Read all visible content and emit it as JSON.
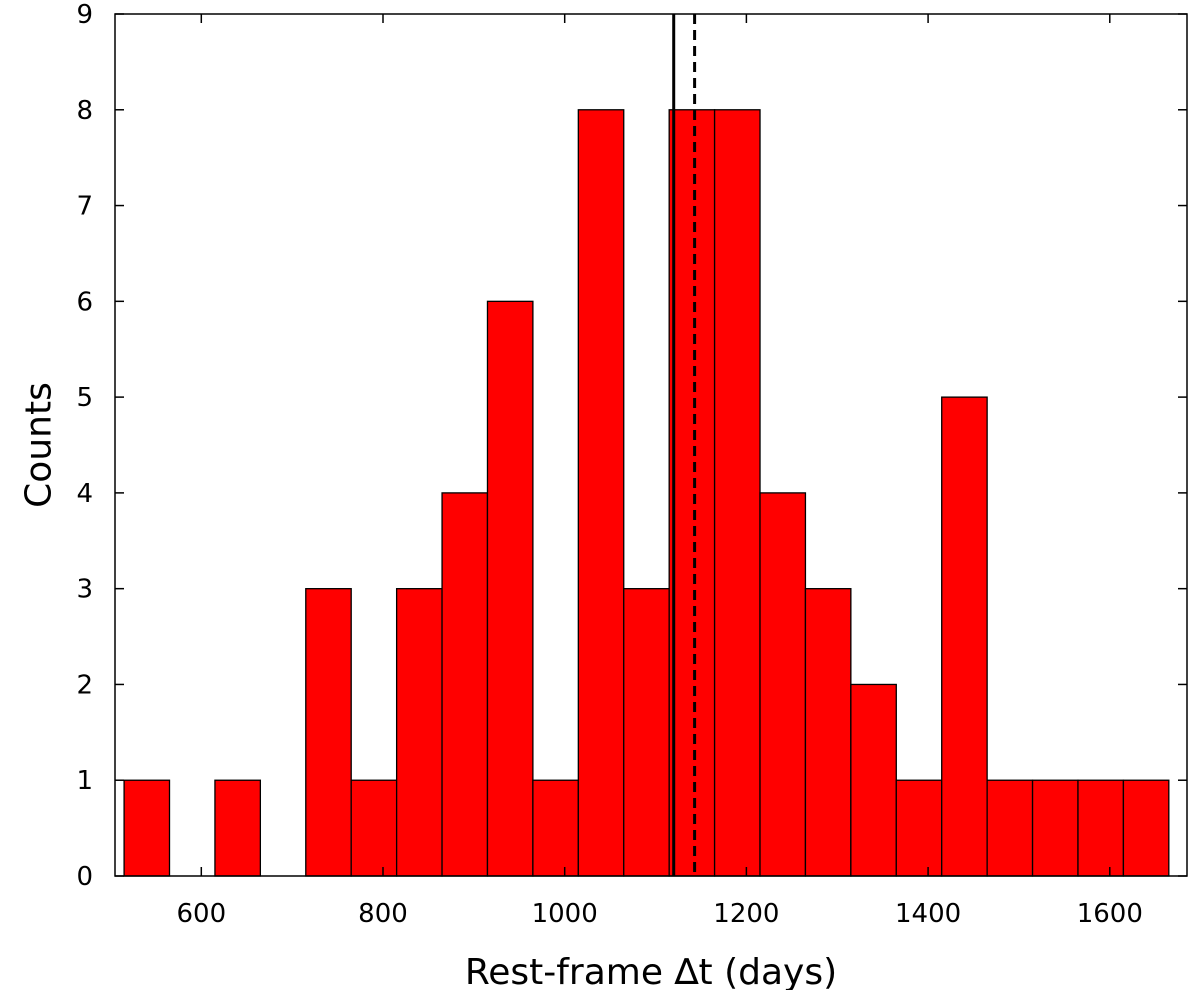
{
  "chart_data": {
    "type": "bar",
    "title": "",
    "xlabel": "Rest-frame ∆t (days)",
    "ylabel": "Counts",
    "xlim": [
      505,
      1685
    ],
    "ylim": [
      0,
      9
    ],
    "bin_width": 50,
    "bin_edges": [
      515,
      565,
      615,
      665,
      715,
      765,
      815,
      865,
      915,
      965,
      1015,
      1065,
      1115,
      1165,
      1215,
      1265,
      1315,
      1365,
      1415,
      1465,
      1515,
      1565,
      1615,
      1665
    ],
    "values": [
      1,
      0,
      1,
      0,
      3,
      1,
      3,
      4,
      6,
      1,
      8,
      3,
      8,
      8,
      4,
      3,
      2,
      1,
      5,
      1,
      1,
      1,
      1
    ],
    "bar_color": "#ff0000",
    "x_ticks": [
      "600",
      "800",
      "1000",
      "1200",
      "1400",
      "1600"
    ],
    "x_tick_values": [
      600,
      800,
      1000,
      1200,
      1400,
      1600
    ],
    "y_ticks": [
      "0",
      "1",
      "2",
      "3",
      "4",
      "5",
      "6",
      "7",
      "8",
      "9"
    ],
    "y_tick_values": [
      0,
      1,
      2,
      3,
      4,
      5,
      6,
      7,
      8,
      9
    ],
    "vertical_lines": [
      {
        "x": 1120,
        "style": "solid"
      },
      {
        "x": 1143,
        "style": "dashed"
      }
    ],
    "grid": false,
    "legend": "none"
  }
}
